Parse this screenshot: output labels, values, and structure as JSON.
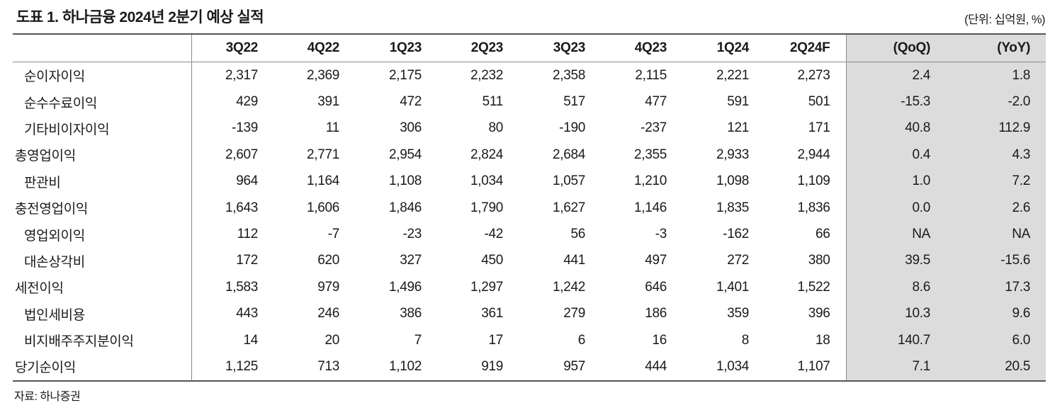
{
  "title": "도표 1. 하나금융 2024년 2분기 예상 실적",
  "unit_note": "(단위: 십억원, %)",
  "source": "자료: 하나증권",
  "colors": {
    "highlight_bg": "#dcdcdc",
    "border_dark": "#555555",
    "border_light": "#8c8c8c"
  },
  "chart_data": {
    "type": "table",
    "title": "하나금융 2024년 2분기 예상 실적",
    "unit": "십억원, %",
    "columns": [
      "3Q22",
      "4Q22",
      "1Q23",
      "2Q23",
      "3Q23",
      "4Q23",
      "1Q24",
      "2Q24F",
      "(QoQ)",
      "(YoY)"
    ],
    "highlight_columns": [
      "(QoQ)",
      "(YoY)"
    ]
  },
  "table": {
    "columns": [
      "3Q22",
      "4Q22",
      "1Q23",
      "2Q23",
      "3Q23",
      "4Q23",
      "1Q24",
      "2Q24F",
      "(QoQ)",
      "(YoY)"
    ],
    "rows": [
      {
        "label": "순이자이익",
        "indent": true,
        "values": [
          "2,317",
          "2,369",
          "2,175",
          "2,232",
          "2,358",
          "2,115",
          "2,221",
          "2,273",
          "2.4",
          "1.8"
        ]
      },
      {
        "label": "순수수료이익",
        "indent": true,
        "values": [
          "429",
          "391",
          "472",
          "511",
          "517",
          "477",
          "591",
          "501",
          "-15.3",
          "-2.0"
        ]
      },
      {
        "label": "기타비이자이익",
        "indent": true,
        "values": [
          "-139",
          "11",
          "306",
          "80",
          "-190",
          "-237",
          "121",
          "171",
          "40.8",
          "112.9"
        ]
      },
      {
        "label": "총영업이익",
        "indent": false,
        "values": [
          "2,607",
          "2,771",
          "2,954",
          "2,824",
          "2,684",
          "2,355",
          "2,933",
          "2,944",
          "0.4",
          "4.3"
        ]
      },
      {
        "label": "판관비",
        "indent": true,
        "values": [
          "964",
          "1,164",
          "1,108",
          "1,034",
          "1,057",
          "1,210",
          "1,098",
          "1,109",
          "1.0",
          "7.2"
        ]
      },
      {
        "label": "충전영업이익",
        "indent": false,
        "values": [
          "1,643",
          "1,606",
          "1,846",
          "1,790",
          "1,627",
          "1,146",
          "1,835",
          "1,836",
          "0.0",
          "2.6"
        ]
      },
      {
        "label": "영업외이익",
        "indent": true,
        "values": [
          "112",
          "-7",
          "-23",
          "-42",
          "56",
          "-3",
          "-162",
          "66",
          "NA",
          "NA"
        ]
      },
      {
        "label": "대손상각비",
        "indent": true,
        "values": [
          "172",
          "620",
          "327",
          "450",
          "441",
          "497",
          "272",
          "380",
          "39.5",
          "-15.6"
        ]
      },
      {
        "label": "세전이익",
        "indent": false,
        "values": [
          "1,583",
          "979",
          "1,496",
          "1,297",
          "1,242",
          "646",
          "1,401",
          "1,522",
          "8.6",
          "17.3"
        ]
      },
      {
        "label": "법인세비용",
        "indent": true,
        "values": [
          "443",
          "246",
          "386",
          "361",
          "279",
          "186",
          "359",
          "396",
          "10.3",
          "9.6"
        ]
      },
      {
        "label": "비지배주주지분이익",
        "indent": true,
        "values": [
          "14",
          "20",
          "7",
          "17",
          "6",
          "16",
          "8",
          "18",
          "140.7",
          "6.0"
        ]
      },
      {
        "label": "당기순이익",
        "indent": false,
        "values": [
          "1,125",
          "713",
          "1,102",
          "919",
          "957",
          "444",
          "1,034",
          "1,107",
          "7.1",
          "20.5"
        ]
      }
    ]
  }
}
